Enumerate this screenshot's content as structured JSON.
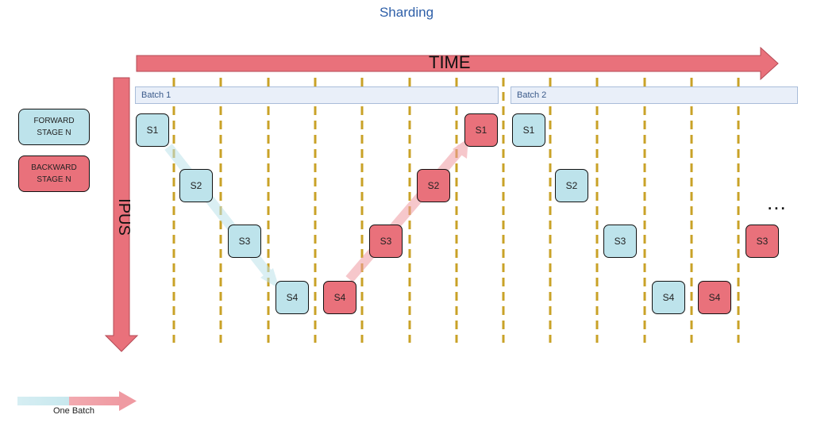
{
  "title": "Sharding",
  "time_label": "TIME",
  "ipus_label": "IPUS",
  "legend": {
    "forward": "FORWARD\nSTAGE N",
    "backward": "BACKWARD\nSTAGE N"
  },
  "batches": [
    "Batch 1",
    "Batch 2"
  ],
  "stage_labels": {
    "s1": "S1",
    "s2": "S2",
    "s3": "S3",
    "s4": "S4"
  },
  "ellipsis": "...",
  "one_batch_label": "One Batch",
  "colors": {
    "forward": "#bde3eb",
    "backward": "#e9717b",
    "arrow": "#e9717b",
    "divider": "#c9a227",
    "title": "#2e5fa8"
  }
}
